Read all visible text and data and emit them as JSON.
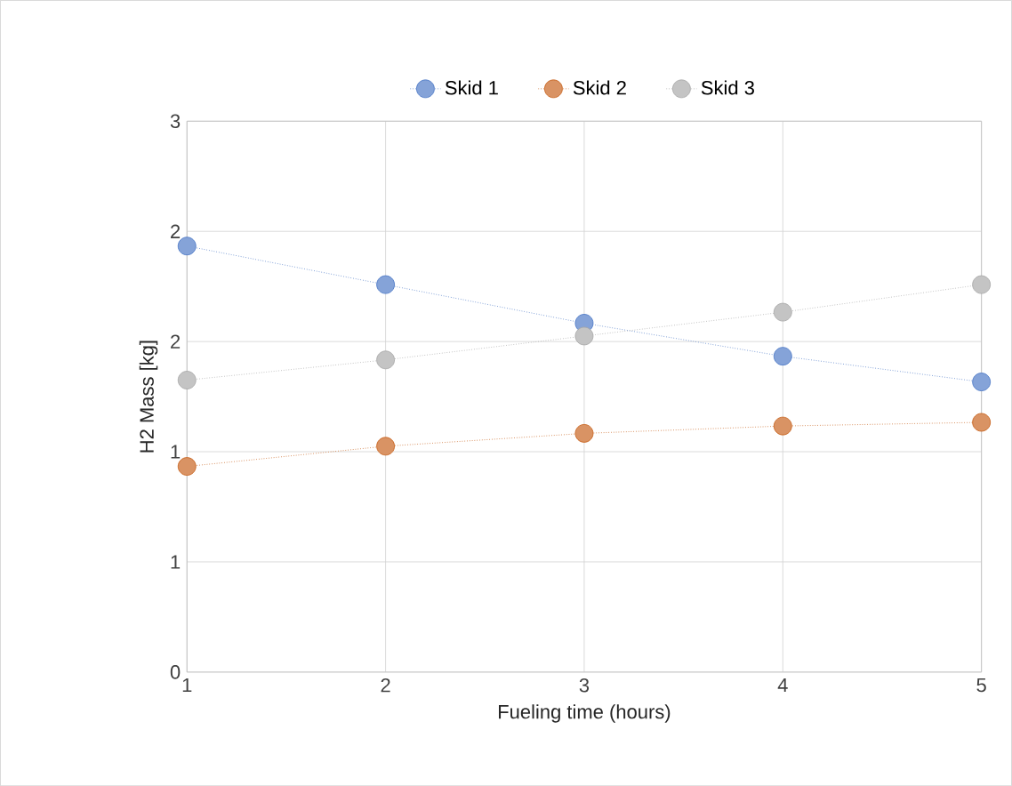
{
  "chart_data": {
    "type": "line",
    "xlabel": "Fueling time (hours)",
    "ylabel": "H2 Mass [kg]",
    "x": [
      1,
      2,
      3,
      4,
      5
    ],
    "series": [
      {
        "name": "Skid 1",
        "color": "#4472c4",
        "values": [
          2.32,
          2.11,
          1.9,
          1.72,
          1.58
        ]
      },
      {
        "name": "Skid 2",
        "color": "#c55a11",
        "values": [
          1.12,
          1.23,
          1.3,
          1.34,
          1.36
        ]
      },
      {
        "name": "Skid 3",
        "color": "#a5a5a5",
        "values": [
          1.59,
          1.7,
          1.83,
          1.96,
          2.11
        ]
      }
    ],
    "xlim": [
      1,
      5
    ],
    "xticks": [
      1,
      2,
      3,
      4,
      5
    ],
    "ylim": [
      0,
      3
    ],
    "yticks": [
      {
        "value": 0,
        "label": "0"
      },
      {
        "value": 0.6,
        "label": "1"
      },
      {
        "value": 1.2,
        "label": "1"
      },
      {
        "value": 1.8,
        "label": "2"
      },
      {
        "value": 2.4,
        "label": "2"
      },
      {
        "value": 3,
        "label": "3"
      }
    ],
    "grid": true,
    "legend": "top",
    "marker": "circle",
    "line_style": "dotted"
  }
}
